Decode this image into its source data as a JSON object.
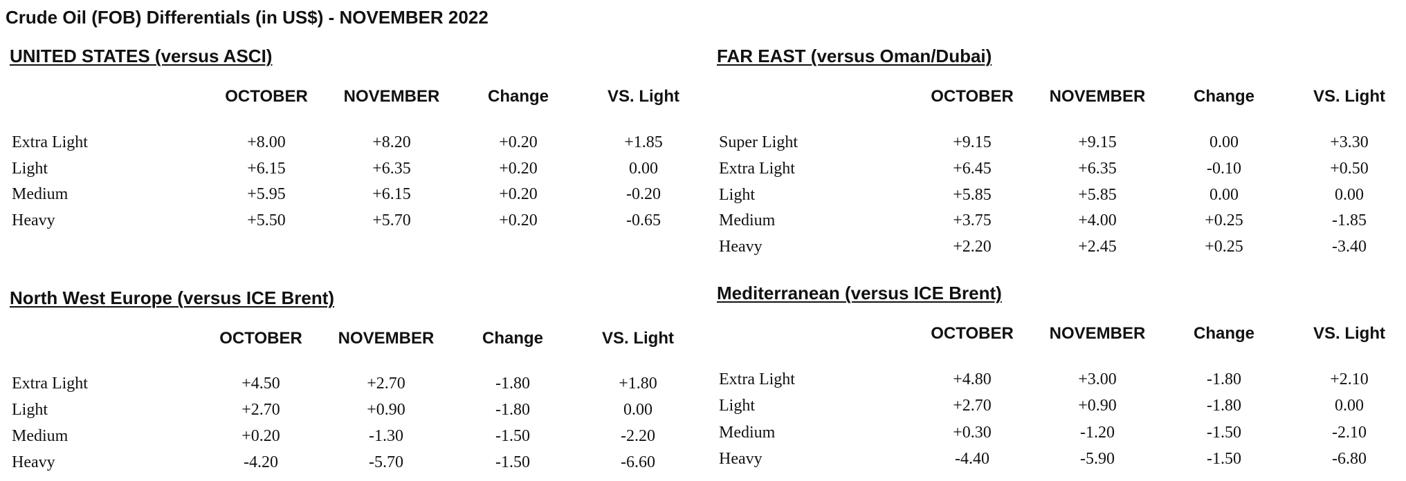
{
  "title": "Crude Oil (FOB) Differentials (in US$) - NOVEMBER 2022",
  "sections": [
    {
      "heading": "UNITED STATES  (versus ASCI)",
      "columns": [
        "OCTOBER",
        "NOVEMBER",
        "Change",
        "VS. Light"
      ],
      "rows": [
        [
          "Extra Light",
          "+8.00",
          "+8.20",
          "+0.20",
          "+1.85"
        ],
        [
          "Light",
          "+6.15",
          "+6.35",
          "+0.20",
          "0.00"
        ],
        [
          "Medium",
          "+5.95",
          "+6.15",
          "+0.20",
          "-0.20"
        ],
        [
          "Heavy",
          "+5.50",
          "+5.70",
          "+0.20",
          "-0.65"
        ]
      ]
    },
    {
      "heading": "FAR EAST (versus Oman/Dubai)",
      "columns": [
        "OCTOBER",
        "NOVEMBER",
        "Change",
        "VS. Light"
      ],
      "rows": [
        [
          "Super Light",
          "+9.15",
          "+9.15",
          "0.00",
          "+3.30"
        ],
        [
          "Extra Light",
          "+6.45",
          "+6.35",
          "-0.10",
          "+0.50"
        ],
        [
          "Light",
          "+5.85",
          "+5.85",
          "0.00",
          "0.00"
        ],
        [
          "Medium",
          "+3.75",
          "+4.00",
          "+0.25",
          "-1.85"
        ],
        [
          "Heavy",
          "+2.20",
          "+2.45",
          "+0.25",
          "-3.40"
        ]
      ]
    },
    {
      "heading": "North West Europe (versus ICE Brent)",
      "columns": [
        "OCTOBER",
        "NOVEMBER",
        "Change",
        "VS. Light"
      ],
      "rows": [
        [
          "Extra Light",
          "+4.50",
          "+2.70",
          "-1.80",
          "+1.80"
        ],
        [
          "Light",
          "+2.70",
          "+0.90",
          "-1.80",
          "0.00"
        ],
        [
          "Medium",
          "+0.20",
          "-1.30",
          "-1.50",
          "-2.20"
        ],
        [
          "Heavy",
          "-4.20",
          "-5.70",
          "-1.50",
          "-6.60"
        ]
      ]
    },
    {
      "heading": "Mediterranean (versus ICE Brent)",
      "columns": [
        "OCTOBER",
        "NOVEMBER",
        "Change",
        "VS. Light"
      ],
      "rows": [
        [
          "Extra Light",
          "+4.80",
          "+3.00",
          "-1.80",
          "+2.10"
        ],
        [
          "Light",
          "+2.70",
          "+0.90",
          "-1.80",
          "0.00"
        ],
        [
          "Medium",
          "+0.30",
          "-1.20",
          "-1.50",
          "-2.10"
        ],
        [
          "Heavy",
          "-4.40",
          "-5.90",
          "-1.50",
          "-6.80"
        ]
      ]
    }
  ]
}
